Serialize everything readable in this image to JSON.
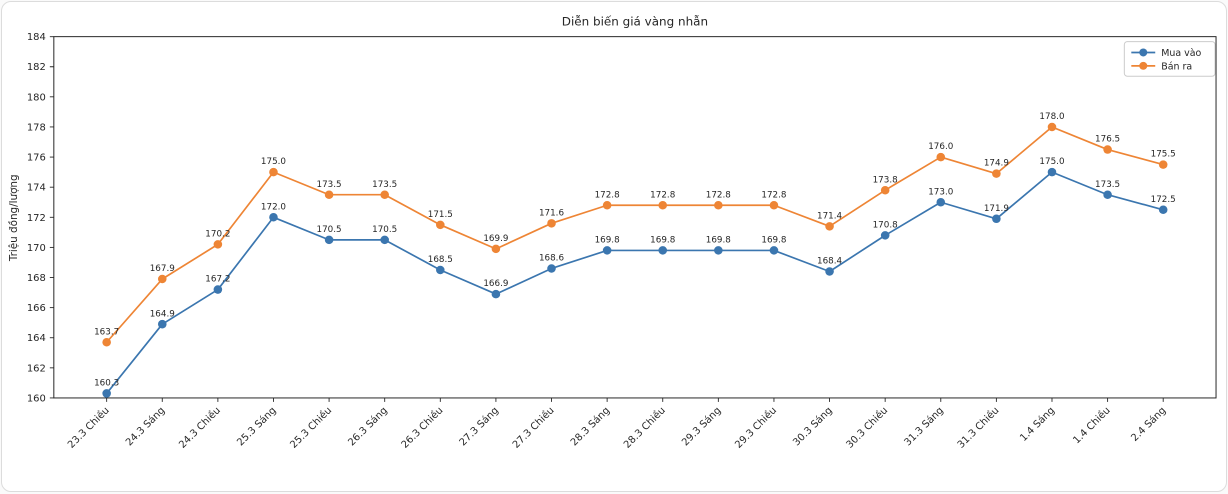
{
  "chart_data": {
    "type": "line",
    "title": "Diễn biến giá vàng nhẫn",
    "xlabel": "",
    "ylabel": "Triệu đồng/lượng",
    "ylim": [
      160,
      184
    ],
    "ytick_step": 2,
    "grid": false,
    "legend_position": "upper right",
    "marker": "circle",
    "value_labels": true,
    "axis_color": "#262626",
    "text_color": "#262626",
    "background_color": "#ffffff",
    "categories": [
      "23.3 Chiều",
      "24.3 Sáng",
      "24.3 Chiều",
      "25.3 Sáng",
      "25.3 Chiều",
      "26.3 Sáng",
      "26.3 Chiều",
      "27.3 Sáng",
      "27.3 Chiều",
      "28.3 Sáng",
      "28.3 Chiều",
      "29.3 Sáng",
      "29.3 Chiều",
      "30.3 Sáng",
      "30.3 Chiều",
      "31.3 Sáng",
      "31.3 Chiều",
      "1.4 Sáng",
      "1.4 Chiều",
      "2.4 Sáng"
    ],
    "series": [
      {
        "name": "Mua vào",
        "color": "#3b76af",
        "values": [
          160.3,
          164.9,
          167.2,
          172.0,
          170.5,
          170.5,
          168.5,
          166.9,
          168.6,
          169.8,
          169.8,
          169.8,
          169.8,
          168.4,
          170.8,
          173.0,
          171.9,
          175.0,
          173.5,
          172.5
        ]
      },
      {
        "name": "Bán ra",
        "color": "#ee8535",
        "values": [
          163.7,
          167.9,
          170.2,
          175.0,
          173.5,
          173.5,
          171.5,
          169.9,
          171.6,
          172.8,
          172.8,
          172.8,
          172.8,
          171.4,
          173.8,
          176.0,
          174.9,
          178.0,
          176.5,
          175.5
        ]
      }
    ]
  }
}
